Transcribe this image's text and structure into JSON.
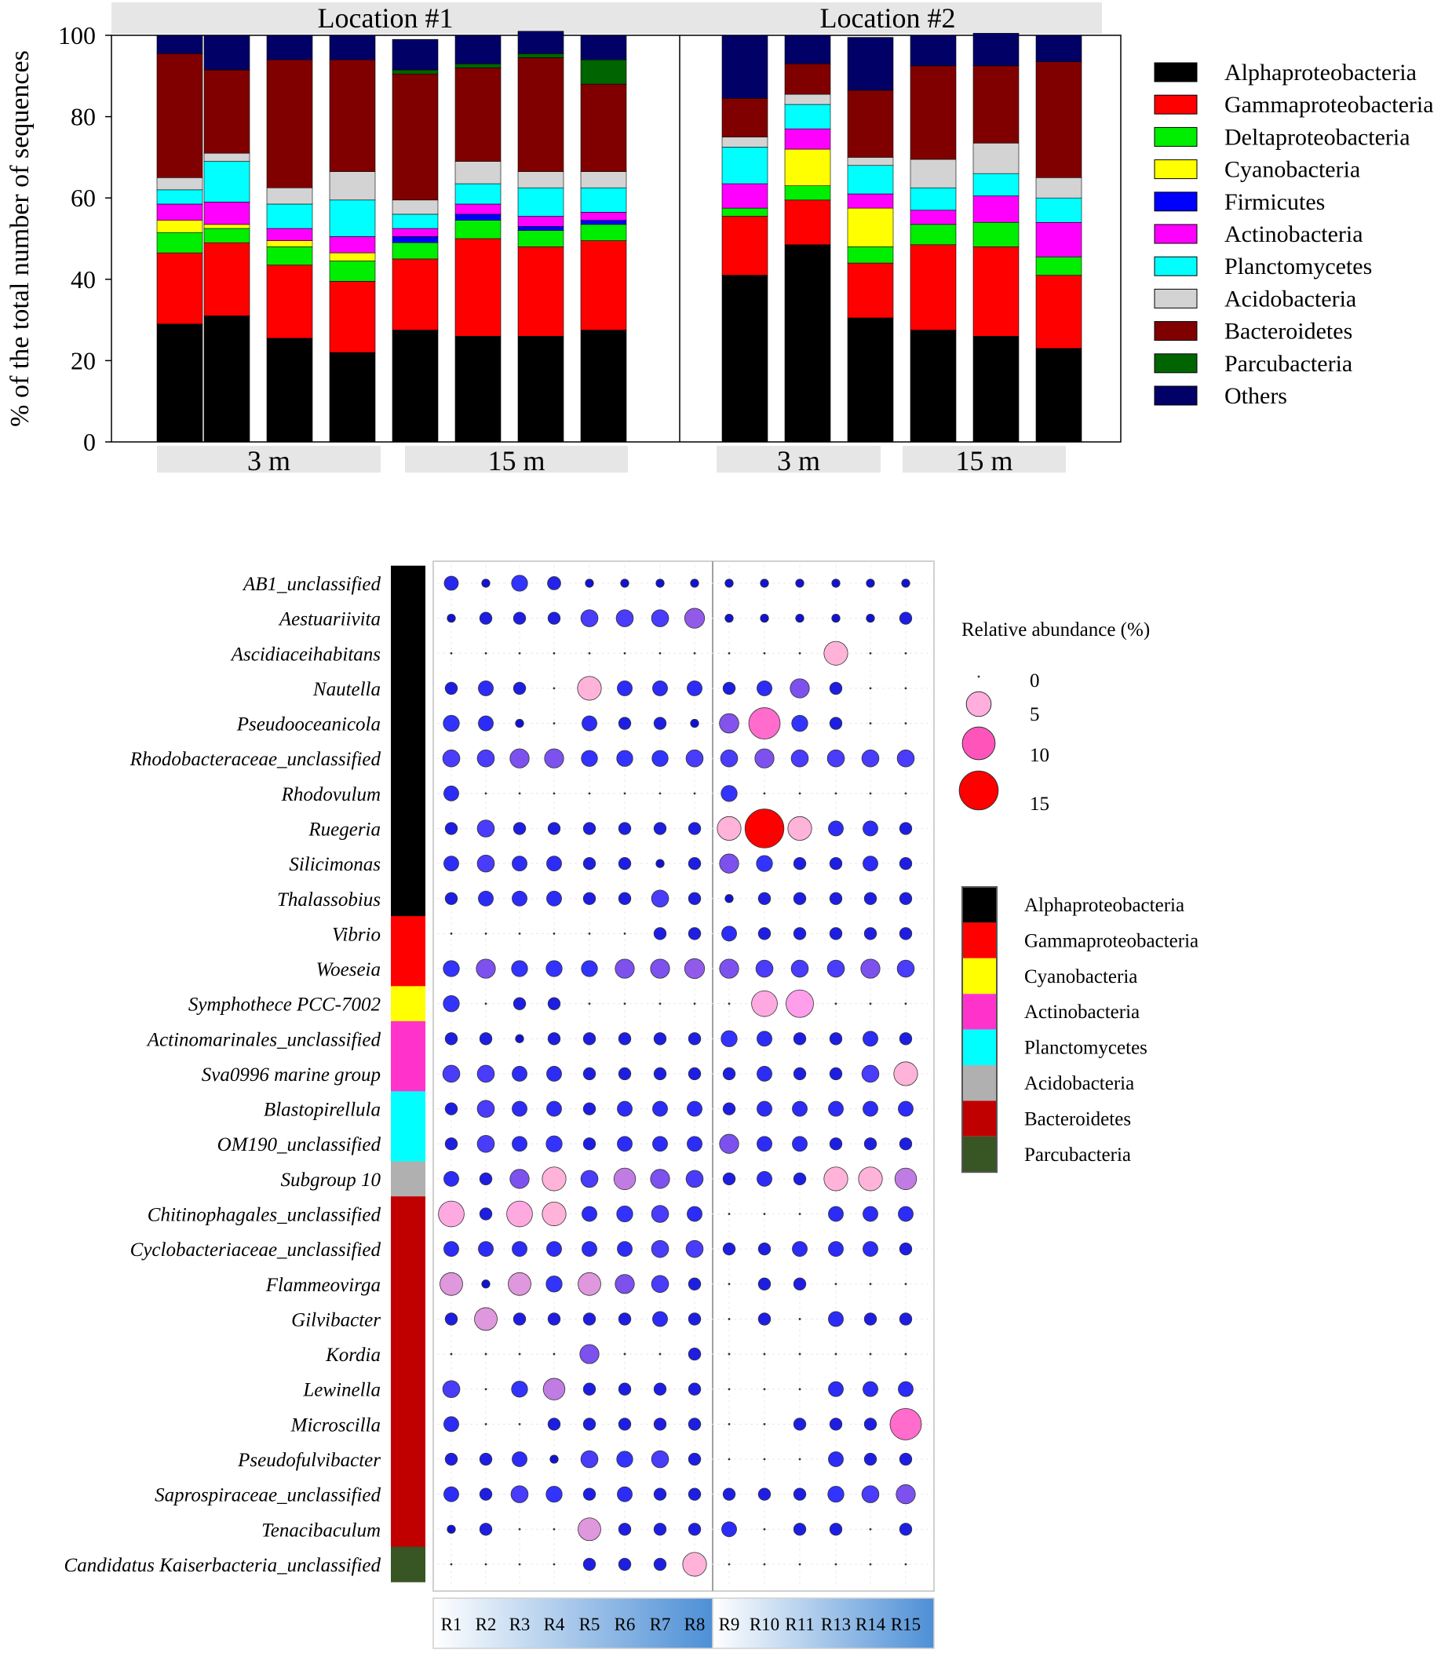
{
  "chart_data": [
    {
      "type": "bar",
      "stacked": true,
      "ylabel": "% of the total number of sequences",
      "ylim": [
        0,
        100
      ],
      "yticks": [
        "0",
        "20",
        "40",
        "60",
        "80",
        "100"
      ],
      "location_labels": [
        "Location #1",
        "Location #2"
      ],
      "depth_labels": [
        "3 m",
        "15 m",
        "3 m",
        "15 m"
      ],
      "legend_position": "right",
      "series": [
        {
          "name": "Alphaproteobacteria",
          "color": "#000000",
          "values": [
            29,
            31,
            25.5,
            22,
            27.5,
            26,
            26,
            27.5,
            41,
            48.5,
            30.5,
            27.5,
            26,
            23
          ]
        },
        {
          "name": "Gammaproteobacteria",
          "color": "#ff0000",
          "values": [
            17.5,
            18,
            18,
            17.5,
            17.5,
            24,
            22,
            22,
            14.5,
            11,
            13.5,
            21,
            22,
            18
          ]
        },
        {
          "name": "Deltaproteobacteria",
          "color": "#00ee00",
          "values": [
            5,
            3.5,
            4.5,
            5,
            4,
            4.5,
            4,
            4,
            2,
            3.5,
            4,
            5,
            6,
            4.5
          ]
        },
        {
          "name": "Cyanobacteria",
          "color": "#ffff00",
          "values": [
            3,
            1,
            1.5,
            2,
            0,
            0,
            0,
            0,
            0,
            9,
            9.5,
            0,
            0,
            0
          ]
        },
        {
          "name": "Firmicutes",
          "color": "#0000ff",
          "values": [
            0,
            0,
            0,
            0,
            1.5,
            1.5,
            1,
            1,
            0,
            0,
            0,
            0,
            0,
            0
          ]
        },
        {
          "name": "Actinobacteria",
          "color": "#ff00ff",
          "values": [
            4,
            5.5,
            3,
            4,
            2,
            2.5,
            2.5,
            2,
            6,
            5,
            3.5,
            3.5,
            6.5,
            8.5
          ]
        },
        {
          "name": "Planctomycetes",
          "color": "#00ffff",
          "values": [
            3.5,
            10,
            6,
            9,
            3.5,
            5,
            7,
            6,
            9,
            6,
            7,
            5.5,
            5.5,
            6
          ]
        },
        {
          "name": "Acidobacteria",
          "color": "#d3d3d3",
          "values": [
            3,
            2,
            4,
            7,
            3.5,
            5.5,
            4,
            4,
            2.5,
            2.5,
            2,
            7,
            7.5,
            5
          ]
        },
        {
          "name": "Bacteroidetes",
          "color": "#800000",
          "values": [
            30.5,
            20.5,
            31.5,
            27.5,
            31,
            23,
            28,
            21.5,
            9.5,
            7.5,
            16.5,
            23,
            19,
            28.5
          ]
        },
        {
          "name": "Parcubacteria",
          "color": "#006400",
          "values": [
            0,
            0,
            0,
            0,
            1,
            1,
            1,
            6,
            0,
            0,
            0,
            0,
            0,
            0
          ]
        },
        {
          "name": "Others",
          "color": "#000066",
          "values": [
            4.5,
            8.5,
            6,
            6,
            7.5,
            7,
            5.5,
            6,
            15.5,
            7,
            13,
            7.5,
            8,
            6.5
          ]
        }
      ]
    },
    {
      "type": "scatter",
      "subtype": "bubble",
      "samples": [
        "R1",
        "R2",
        "R3",
        "R4",
        "R5",
        "R6",
        "R7",
        "R8",
        "R9",
        "R10",
        "R11",
        "R13",
        "R14",
        "R15"
      ],
      "size_legend_title": "Relative abundance (%)",
      "size_legend": [
        {
          "label": "0",
          "value": 0
        },
        {
          "label": "5",
          "value": 5
        },
        {
          "label": "10",
          "value": 10
        },
        {
          "label": "15",
          "value": 15
        }
      ],
      "class_legend": [
        {
          "name": "Alphaproteobacteria",
          "color": "#000000"
        },
        {
          "name": "Gammaproteobacteria",
          "color": "#ff0000"
        },
        {
          "name": "Cyanobacteria",
          "color": "#ffff00"
        },
        {
          "name": "Actinobacteria",
          "color": "#ff33cc"
        },
        {
          "name": "Planctomycetes",
          "color": "#00ffff"
        },
        {
          "name": "Acidobacteria",
          "color": "#b0b0b0"
        },
        {
          "name": "Bacteroidetes",
          "color": "#c00000"
        },
        {
          "name": "Parcubacteria",
          "color": "#375623"
        }
      ],
      "rows": [
        {
          "genus": "AB1_unclassified",
          "cls": 0,
          "values": [
            1,
            0.1,
            1.5,
            0.8,
            0.1,
            0.1,
            0.1,
            0.1,
            0.1,
            0.1,
            0.1,
            0.1,
            0.1,
            0.1
          ]
        },
        {
          "genus": "Aestuariivita",
          "cls": 0,
          "values": [
            0.1,
            0.6,
            0.6,
            0.6,
            1.8,
            1.8,
            1.8,
            2.8,
            0.1,
            0.1,
            0.1,
            0.1,
            0.1,
            0.6
          ]
        },
        {
          "genus": "Ascidiaceihabitans",
          "cls": 0,
          "values": [
            0,
            0,
            0,
            0,
            0,
            0,
            0,
            0,
            0,
            0,
            0,
            4.5,
            0,
            0
          ]
        },
        {
          "genus": "Nautella",
          "cls": 0,
          "values": [
            0.6,
            1.2,
            0.6,
            0,
            4.5,
            1.2,
            1.2,
            1.2,
            0.6,
            1.2,
            2.5,
            0.6,
            0,
            0
          ]
        },
        {
          "genus": "Pseudooceanicola",
          "cls": 0,
          "values": [
            1.5,
            1.2,
            0.1,
            0,
            1.2,
            0.6,
            0.6,
            0.1,
            2.6,
            9,
            1.5,
            0.6,
            0,
            0
          ]
        },
        {
          "genus": "Rhodobacteraceae_unclassified",
          "cls": 0,
          "values": [
            1.8,
            1.8,
            2.5,
            2.5,
            1.5,
            1.5,
            1.5,
            1.8,
            1.8,
            2.5,
            1.8,
            1.8,
            1.8,
            1.8
          ]
        },
        {
          "genus": "Rhodovulum",
          "cls": 0,
          "values": [
            1.2,
            0,
            0,
            0,
            0,
            0,
            0,
            0,
            1.5,
            0,
            0,
            0,
            0,
            0
          ]
        },
        {
          "genus": "Ruegeria",
          "cls": 0,
          "values": [
            0.6,
            1.8,
            0.6,
            0.6,
            0.6,
            0.6,
            0.6,
            0.6,
            4.5,
            15,
            4.5,
            1.2,
            1.2,
            0.6
          ]
        },
        {
          "genus": "Silicimonas",
          "cls": 0,
          "values": [
            1.2,
            1.8,
            1.2,
            1.2,
            0.6,
            0.6,
            0.1,
            0.6,
            2.5,
            1.5,
            0.6,
            0.6,
            1.2,
            0.6
          ]
        },
        {
          "genus": "Thalassobius",
          "cls": 0,
          "values": [
            0.6,
            1.2,
            1.2,
            1.2,
            0.6,
            0.6,
            1.8,
            0.6,
            0.1,
            0.6,
            0.6,
            0.6,
            0.6,
            0.6
          ]
        },
        {
          "genus": "Vibrio",
          "cls": 1,
          "values": [
            0,
            0,
            0,
            0,
            0,
            0,
            0.6,
            0.6,
            1.2,
            0.6,
            0.6,
            0.6,
            0.6,
            0.6
          ]
        },
        {
          "genus": "Woeseia",
          "cls": 1,
          "values": [
            1.5,
            2.5,
            1.5,
            1.5,
            1.5,
            2.5,
            2.5,
            2.8,
            2.5,
            1.8,
            1.8,
            1.8,
            2.5,
            1.8
          ]
        },
        {
          "genus": "Symphothece PCC-7002",
          "cls": 2,
          "values": [
            1.5,
            0,
            0.6,
            0.6,
            0,
            0,
            0,
            0,
            0,
            5.5,
            6.5,
            0,
            0,
            0
          ]
        },
        {
          "genus": "Actinomarinales_unclassified",
          "cls": 3,
          "values": [
            0.6,
            0.6,
            0.1,
            0.6,
            0.6,
            0.6,
            0.6,
            0.6,
            1.5,
            1.2,
            0.6,
            0.6,
            1.2,
            0.6
          ]
        },
        {
          "genus": "Sva0996 marine group",
          "cls": 3,
          "values": [
            1.8,
            1.8,
            1.2,
            1.2,
            0.6,
            0.6,
            0.6,
            0.6,
            0.6,
            1.2,
            0.6,
            0.6,
            1.8,
            4.5
          ]
        },
        {
          "genus": "Blastopirellula",
          "cls": 4,
          "values": [
            0.6,
            1.8,
            1.2,
            1.2,
            0.6,
            1.2,
            1.2,
            1.2,
            0.6,
            1.2,
            1.2,
            1.2,
            1.2,
            1.2
          ]
        },
        {
          "genus": "OM190_unclassified",
          "cls": 4,
          "values": [
            0.6,
            1.8,
            1.2,
            1.5,
            0.6,
            1.2,
            1.2,
            1.2,
            2.5,
            1.2,
            1.2,
            0.6,
            0.6,
            0.6
          ]
        },
        {
          "genus": "Subgroup 10",
          "cls": 5,
          "values": [
            1.2,
            0.6,
            2.5,
            4.5,
            1.8,
            3.5,
            2.5,
            1.8,
            0.6,
            1.2,
            0.6,
            4.5,
            4.5,
            3.5
          ]
        },
        {
          "genus": "Chitinophagales_unclassified",
          "cls": 6,
          "values": [
            5.5,
            0.6,
            5.5,
            4.5,
            1.2,
            1.5,
            1.8,
            1.2,
            0,
            0,
            0,
            1.2,
            1.2,
            1.2
          ]
        },
        {
          "genus": "Cyclobacteriaceae_unclassified",
          "cls": 6,
          "values": [
            1.2,
            1.2,
            1.2,
            1.2,
            1.2,
            1.2,
            1.8,
            1.8,
            0.6,
            0.6,
            1.2,
            1.2,
            1.2,
            0.6
          ]
        },
        {
          "genus": "Flammeovirga",
          "cls": 6,
          "values": [
            4,
            0.1,
            4,
            1.5,
            4,
            2.5,
            1.8,
            0.6,
            0,
            0.6,
            0.6,
            0,
            0,
            0
          ]
        },
        {
          "genus": "Gilvibacter",
          "cls": 6,
          "values": [
            0.6,
            4,
            0.6,
            0.6,
            0.6,
            0.6,
            1.2,
            0.6,
            0,
            0.6,
            0,
            1.2,
            0.6,
            0.6
          ]
        },
        {
          "genus": "Kordia",
          "cls": 6,
          "values": [
            0,
            0,
            0,
            0,
            2.5,
            0,
            0,
            0.6,
            0,
            0,
            0,
            0,
            0,
            0
          ]
        },
        {
          "genus": "Lewinella",
          "cls": 6,
          "values": [
            1.8,
            0,
            1.5,
            3.5,
            0.6,
            0.6,
            0.6,
            0.6,
            0,
            0,
            0,
            1.2,
            1.2,
            1.2
          ]
        },
        {
          "genus": "Microscilla",
          "cls": 6,
          "values": [
            1.2,
            0,
            0,
            0.6,
            0.6,
            0.6,
            0.6,
            0.6,
            0,
            0,
            0.6,
            0.6,
            0.6,
            9
          ]
        },
        {
          "genus": "Pseudofulvibacter",
          "cls": 6,
          "values": [
            0.6,
            0.6,
            1.2,
            0.1,
            1.8,
            1.5,
            1.8,
            0.6,
            0,
            0,
            0,
            1.2,
            0.6,
            0.6
          ]
        },
        {
          "genus": "Saprospiraceae_unclassified",
          "cls": 6,
          "values": [
            1.2,
            0.6,
            1.8,
            1.5,
            0.6,
            1.2,
            0.6,
            0.6,
            0.6,
            0.6,
            0.6,
            1.5,
            1.8,
            2.5
          ]
        },
        {
          "genus": "Tenacibaculum",
          "cls": 6,
          "values": [
            0.1,
            0.6,
            0,
            0,
            4,
            0.6,
            0.6,
            0.6,
            1.2,
            0,
            0.6,
            0.6,
            0,
            0.6
          ]
        },
        {
          "genus": "Candidatus Kaiserbacteria_unclassified",
          "cls": 7,
          "values": [
            0,
            0,
            0,
            0,
            0.6,
            0.6,
            0.6,
            4.5,
            0,
            0,
            0,
            0,
            0,
            0
          ]
        }
      ]
    }
  ]
}
